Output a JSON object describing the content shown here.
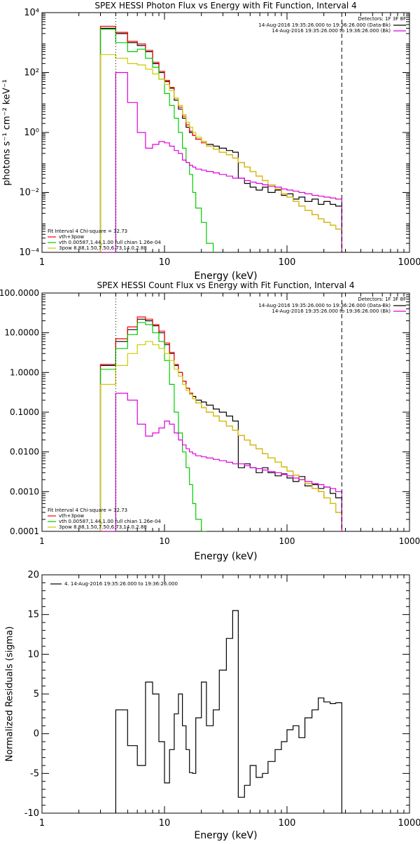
{
  "chart_data": [
    {
      "type": "line",
      "title": "SPEX HESSI Photon Flux vs Energy with Fit Function, Interval 4",
      "xlabel": "Energy (keV)",
      "ylabel": "photons s⁻¹ cm⁻² keV⁻¹",
      "x_scale": "log",
      "y_scale": "log",
      "xlim": [
        1,
        1000
      ],
      "ylim": [
        0.0001,
        10000
      ],
      "x_ticks": [
        1,
        10,
        100,
        1000
      ],
      "x_tick_labels": [
        "1",
        "10",
        "100",
        "1000"
      ],
      "y_ticks": [
        0.0001,
        0.01,
        1,
        100,
        10000
      ],
      "y_tick_labels": [
        "10⁻⁴",
        "10⁻²",
        "10⁰",
        "10²",
        "10⁴"
      ],
      "vlines": [
        {
          "x": 4,
          "style": "dotted"
        },
        {
          "x": 280,
          "style": "dashed"
        }
      ],
      "legend_top": {
        "detectors": "Detectors: 1F 3F 8F",
        "lines": [
          {
            "text": "14-Aug-2016 19:35:26.000 to 19:36:26.000 (Data-Bk)",
            "color": "#000000"
          },
          {
            "text": "14-Aug-2016 19:35:26.000 to 19:36:26.000 (Bk)",
            "color": "#dd00dd"
          }
        ]
      },
      "legend_bottom": {
        "header": "Fit Interval 4   Chi-square = 32.73",
        "lines": [
          {
            "text": "vth+3pow",
            "color": "#ff0000"
          },
          {
            "text": "vth 0.00587,1.44,1.00  full chian 1.26e-04",
            "color": "#00cc00"
          },
          {
            "text": "3pow 8.88,1.50,7.50,6.73,14.0,2.88",
            "color": "#cccc00"
          }
        ]
      },
      "series": [
        {
          "color": "#000000",
          "edges": [
            3,
            4,
            5,
            6,
            7,
            8,
            9,
            10,
            11,
            12,
            13,
            14,
            15,
            16,
            17,
            18,
            20,
            22,
            25,
            28,
            32,
            36,
            40,
            45,
            50,
            56,
            63,
            70,
            80,
            90,
            100,
            112,
            125,
            140,
            160,
            180,
            200,
            225,
            250,
            280
          ],
          "values": [
            3000,
            2000,
            1000,
            800,
            500,
            200,
            100,
            50,
            30,
            12,
            6,
            3,
            1.5,
            1.0,
            0.8,
            0.6,
            0.5,
            0.4,
            0.35,
            0.3,
            0.25,
            0.22,
            0.03,
            0.02,
            0.015,
            0.012,
            0.015,
            0.01,
            0.012,
            0.008,
            0.009,
            0.006,
            0.007,
            0.005,
            0.006,
            0.004,
            0.005,
            0.004,
            0.0035
          ]
        },
        {
          "color": "#ff0000",
          "edges": [
            3,
            4,
            5,
            6,
            7,
            8,
            9,
            10,
            11,
            12,
            13,
            14,
            15,
            16,
            17,
            18,
            20,
            22,
            25,
            28,
            32,
            36,
            40,
            45,
            50,
            56,
            63,
            70,
            80,
            90,
            100,
            112,
            125,
            140,
            160,
            180,
            200,
            225,
            250,
            280
          ],
          "values": [
            3500,
            2200,
            1100,
            900,
            550,
            220,
            110,
            55,
            32,
            14,
            7,
            3.5,
            1.8,
            1.1,
            0.8,
            0.6,
            0.45,
            0.35,
            0.28,
            0.22,
            0.18,
            0.14,
            0.1,
            0.07,
            0.05,
            0.035,
            0.025,
            0.018,
            0.013,
            0.009,
            0.007,
            0.005,
            0.0035,
            0.0025,
            0.0018,
            0.0013,
            0.001,
            0.0008,
            0.0006
          ]
        },
        {
          "color": "#00cc00",
          "edges": [
            3,
            4,
            5,
            6,
            7,
            8,
            9,
            10,
            11,
            12,
            13,
            14,
            15,
            16,
            17,
            18,
            20,
            22,
            25
          ],
          "values": [
            2800,
            1000,
            500,
            600,
            300,
            150,
            60,
            20,
            8,
            3,
            1,
            0.3,
            0.1,
            0.04,
            0.01,
            0.003,
            0.001,
            0.0002
          ]
        },
        {
          "color": "#cccc00",
          "edges": [
            3,
            4,
            5,
            6,
            7,
            8,
            9,
            10,
            11,
            12,
            13,
            14,
            15,
            16,
            17,
            18,
            20,
            22,
            25,
            28,
            32,
            36,
            40,
            45,
            50,
            56,
            63,
            70,
            80,
            90,
            100,
            112,
            125,
            140,
            160,
            180,
            200,
            225,
            250,
            280
          ],
          "values": [
            400,
            300,
            200,
            180,
            130,
            90,
            60,
            40,
            25,
            14,
            8,
            4,
            2.2,
            1.5,
            1.0,
            0.7,
            0.5,
            0.35,
            0.28,
            0.22,
            0.18,
            0.14,
            0.1,
            0.07,
            0.05,
            0.035,
            0.025,
            0.018,
            0.013,
            0.009,
            0.007,
            0.005,
            0.0035,
            0.0025,
            0.0018,
            0.0013,
            0.001,
            0.0008,
            0.0006
          ]
        },
        {
          "color": "#dd00dd",
          "edges": [
            3,
            4,
            5,
            6,
            7,
            8,
            9,
            10,
            11,
            12,
            13,
            14,
            15,
            16,
            17,
            18,
            20,
            22,
            25,
            28,
            32,
            36,
            40,
            45,
            50,
            56,
            63,
            70,
            80,
            90,
            100,
            112,
            125,
            140,
            160,
            180,
            200,
            225,
            250,
            280
          ],
          "values": [
            0.0001,
            100,
            10,
            1,
            0.3,
            0.4,
            0.5,
            0.45,
            0.35,
            0.25,
            0.2,
            0.12,
            0.1,
            0.08,
            0.07,
            0.06,
            0.055,
            0.05,
            0.045,
            0.04,
            0.035,
            0.03,
            0.03,
            0.025,
            0.022,
            0.02,
            0.018,
            0.016,
            0.015,
            0.013,
            0.012,
            0.011,
            0.01,
            0.009,
            0.008,
            0.0075,
            0.007,
            0.0065,
            0.006
          ]
        }
      ]
    },
    {
      "type": "line",
      "title": "SPEX HESSI Count Flux vs Energy with Fit Function, Interval 4",
      "xlabel": "Energy (keV)",
      "ylabel": "",
      "x_scale": "log",
      "y_scale": "log",
      "xlim": [
        1,
        1000
      ],
      "ylim": [
        0.0001,
        100
      ],
      "x_ticks": [
        1,
        10,
        100,
        1000
      ],
      "x_tick_labels": [
        "1",
        "10",
        "100",
        "1000"
      ],
      "y_ticks": [
        0.0001,
        0.001,
        0.01,
        0.1,
        1,
        10,
        100
      ],
      "y_tick_labels": [
        "0.0001",
        "0.0010",
        "0.0100",
        "0.1000",
        "1.0000",
        "10.0000",
        "100.0000"
      ],
      "vlines": [
        {
          "x": 4,
          "style": "dotted"
        },
        {
          "x": 280,
          "style": "dashed"
        }
      ],
      "legend_top": {
        "detectors": "Detectors: 1F 3F 8F",
        "lines": [
          {
            "text": "14-Aug-2016 19:35:26.000 to 19:36:26.000 (Data-Bk)",
            "color": "#000000"
          },
          {
            "text": "14-Aug-2016 19:35:26.000 to 19:36:26.000 (Bk)",
            "color": "#dd00dd"
          }
        ]
      },
      "legend_bottom": {
        "header": "Fit Interval 4   Chi-square = 32.73",
        "lines": [
          {
            "text": "vth+3pow",
            "color": "#ff0000"
          },
          {
            "text": "vth 0.00587,1.44,1.00  full chian 1.26e-04",
            "color": "#00cc00"
          },
          {
            "text": "3pow 8.88,1.50,7.50,6.73,14.0,2.88",
            "color": "#cccc00"
          }
        ]
      },
      "series": [
        {
          "color": "#000000",
          "edges": [
            3,
            4,
            5,
            6,
            7,
            8,
            9,
            10,
            11,
            12,
            13,
            14,
            15,
            16,
            17,
            18,
            20,
            22,
            25,
            28,
            32,
            36,
            40,
            45,
            50,
            56,
            63,
            70,
            80,
            90,
            100,
            112,
            125,
            140,
            160,
            180,
            200,
            225,
            250,
            280
          ],
          "values": [
            1.5,
            6,
            12,
            22,
            20,
            15,
            10,
            5,
            3,
            1.5,
            1,
            0.6,
            0.4,
            0.3,
            0.25,
            0.2,
            0.18,
            0.15,
            0.12,
            0.1,
            0.08,
            0.06,
            0.004,
            0.005,
            0.004,
            0.003,
            0.004,
            0.003,
            0.0025,
            0.0028,
            0.0022,
            0.0018,
            0.0024,
            0.0014,
            0.0015,
            0.0012,
            0.0013,
            0.0009,
            0.0007
          ]
        },
        {
          "color": "#ff0000",
          "edges": [
            3,
            4,
            5,
            6,
            7,
            8,
            9,
            10,
            11,
            12,
            13,
            14,
            15,
            16,
            17,
            18,
            20,
            22,
            25,
            28,
            32,
            36,
            40,
            45,
            50,
            56,
            63,
            70,
            80,
            90,
            100,
            112,
            125,
            140,
            160,
            180,
            200,
            225,
            250,
            280
          ],
          "values": [
            1.6,
            7,
            14,
            25,
            22,
            16,
            11,
            5.5,
            3.2,
            1.6,
            1.0,
            0.6,
            0.4,
            0.3,
            0.22,
            0.17,
            0.13,
            0.1,
            0.08,
            0.06,
            0.045,
            0.035,
            0.026,
            0.02,
            0.015,
            0.012,
            0.009,
            0.007,
            0.0055,
            0.0042,
            0.0033,
            0.0026,
            0.002,
            0.0016,
            0.0012,
            0.001,
            0.0007,
            0.0005,
            0.0003
          ]
        },
        {
          "color": "#00cc00",
          "edges": [
            3,
            4,
            5,
            6,
            7,
            8,
            9,
            10,
            11,
            12,
            13,
            14,
            15,
            16,
            17,
            18,
            20,
            22
          ],
          "values": [
            1.2,
            4,
            9,
            18,
            16,
            10,
            6,
            2,
            0.5,
            0.1,
            0.03,
            0.01,
            0.004,
            0.0015,
            0.0005,
            0.0002,
            0.0001
          ]
        },
        {
          "color": "#cccc00",
          "edges": [
            3,
            4,
            5,
            6,
            7,
            8,
            9,
            10,
            11,
            12,
            13,
            14,
            15,
            16,
            17,
            18,
            20,
            22,
            25,
            28,
            32,
            36,
            40,
            45,
            50,
            56,
            63,
            70,
            80,
            90,
            100,
            112,
            125,
            140,
            160,
            180,
            200,
            225,
            250,
            280
          ],
          "values": [
            0.5,
            1.5,
            3,
            5,
            6,
            5,
            4,
            3,
            2,
            1.2,
            0.8,
            0.5,
            0.35,
            0.28,
            0.22,
            0.17,
            0.13,
            0.1,
            0.08,
            0.06,
            0.045,
            0.035,
            0.026,
            0.02,
            0.015,
            0.012,
            0.009,
            0.007,
            0.0055,
            0.0042,
            0.0033,
            0.0026,
            0.002,
            0.0016,
            0.0012,
            0.001,
            0.0007,
            0.0005,
            0.0003
          ]
        },
        {
          "color": "#dd00dd",
          "edges": [
            3,
            4,
            5,
            6,
            7,
            8,
            9,
            10,
            11,
            12,
            13,
            14,
            15,
            16,
            17,
            18,
            20,
            22,
            25,
            28,
            32,
            36,
            40,
            45,
            50,
            56,
            63,
            70,
            80,
            90,
            100,
            112,
            125,
            140,
            160,
            180,
            200,
            225,
            250,
            280
          ],
          "values": [
            0.0001,
            0.3,
            0.2,
            0.05,
            0.025,
            0.03,
            0.04,
            0.06,
            0.05,
            0.03,
            0.02,
            0.015,
            0.012,
            0.01,
            0.009,
            0.008,
            0.0075,
            0.007,
            0.0065,
            0.006,
            0.0055,
            0.005,
            0.005,
            0.0045,
            0.004,
            0.0038,
            0.0035,
            0.0032,
            0.003,
            0.0027,
            0.0025,
            0.0022,
            0.002,
            0.0018,
            0.0016,
            0.0015,
            0.0013,
            0.0012,
            0.001
          ]
        }
      ]
    },
    {
      "type": "line",
      "title": "",
      "xlabel": "Energy (keV)",
      "ylabel": "Normalized Residuals (sigma)",
      "x_scale": "log",
      "y_scale": "linear",
      "xlim": [
        1,
        1000
      ],
      "ylim": [
        -10,
        20
      ],
      "x_ticks": [
        1,
        10,
        100,
        1000
      ],
      "x_tick_labels": [
        "1",
        "10",
        "100",
        "1000"
      ],
      "y_ticks": [
        -10,
        -5,
        0,
        5,
        10,
        15,
        20
      ],
      "y_tick_labels": [
        "-10",
        "-5",
        "0",
        "5",
        "10",
        "15",
        "20"
      ],
      "legend": {
        "text": "4. 14-Aug-2016 19:35:26.000 to 19:36:26.000",
        "color": "#000000"
      },
      "series": [
        {
          "color": "#000000",
          "edges": [
            4,
            5,
            6,
            7,
            8,
            9,
            10,
            11,
            12,
            13,
            14,
            15,
            16,
            17,
            18,
            20,
            22,
            25,
            28,
            32,
            36,
            40,
            45,
            50,
            56,
            63,
            70,
            80,
            90,
            100,
            112,
            125,
            140,
            160,
            180,
            200,
            225,
            250,
            280
          ],
          "values": [
            3.0,
            -1.5,
            -4.0,
            6.5,
            5.0,
            -1.0,
            -6.2,
            -2.0,
            2.5,
            5.0,
            1.0,
            -2.0,
            -4.9,
            -5.0,
            2.0,
            6.5,
            1.0,
            3.0,
            8.0,
            12.0,
            15.5,
            -8.0,
            -6.5,
            -4.0,
            -5.5,
            -5.0,
            -3.5,
            -2.0,
            -1.0,
            0.5,
            1.0,
            -0.5,
            2.0,
            3.0,
            4.5,
            4.0,
            3.8,
            3.9
          ]
        }
      ]
    }
  ]
}
